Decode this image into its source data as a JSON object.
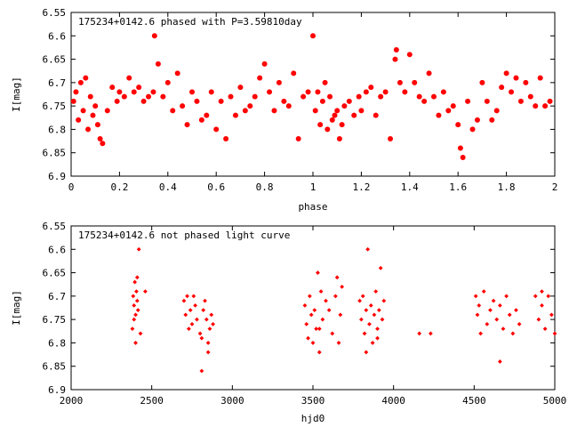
{
  "chart_data": [
    {
      "type": "scatter",
      "title": "175234+0142.6 phased with P=3.59810day",
      "xlabel": "phase",
      "ylabel": "I[mag]",
      "xlim": [
        0,
        2
      ],
      "ylim": [
        6.9,
        6.55
      ],
      "y_inverted": true,
      "xticks": [
        0,
        0.2,
        0.4,
        0.6,
        0.8,
        1,
        1.2,
        1.4,
        1.6,
        1.8,
        2
      ],
      "xtick_labels": [
        "0",
        "0.2",
        "0.4",
        "0.6",
        "0.8",
        "1",
        "1.2",
        "1.4",
        "1.6",
        "1.8",
        "2"
      ],
      "yticks": [
        6.55,
        6.6,
        6.65,
        6.7,
        6.75,
        6.8,
        6.85,
        6.9
      ],
      "ytick_labels": [
        "6.55",
        "6.6",
        "6.65",
        "6.7",
        "6.75",
        "6.8",
        "6.85",
        "6.9"
      ],
      "grid": false,
      "legend": "none",
      "marker_color": "#ff0000",
      "marker": "filled-circle",
      "series": [
        {
          "x": [
            0.01,
            0.02,
            0.03,
            0.04,
            0.05,
            0.06,
            0.07,
            0.08,
            0.09,
            0.1,
            0.11,
            0.12,
            0.13,
            0.15,
            0.17,
            0.19,
            0.2,
            0.22,
            0.24,
            0.26,
            0.28,
            0.3,
            0.32,
            0.34,
            0.345,
            0.36,
            0.38,
            0.4,
            0.42,
            0.44,
            0.46,
            0.48,
            0.5,
            0.52,
            0.54,
            0.56,
            0.58,
            0.6,
            0.62,
            0.64,
            0.66,
            0.68,
            0.7,
            0.72,
            0.74,
            0.76,
            0.78,
            0.8,
            0.82,
            0.84,
            0.86,
            0.88,
            0.9,
            0.92,
            0.94,
            0.96,
            0.98,
            1.0,
            1.01,
            1.02,
            1.03,
            1.04,
            1.05,
            1.06,
            1.07,
            1.08,
            1.09,
            1.1,
            1.11,
            1.12,
            1.13,
            1.15,
            1.17,
            1.19,
            1.2,
            1.22,
            1.24,
            1.26,
            1.28,
            1.3,
            1.32,
            1.34,
            1.345,
            1.36,
            1.38,
            1.4,
            1.42,
            1.44,
            1.46,
            1.48,
            1.5,
            1.52,
            1.54,
            1.56,
            1.58,
            1.6,
            1.61,
            1.62,
            1.64,
            1.66,
            1.68,
            1.7,
            1.72,
            1.74,
            1.76,
            1.78,
            1.8,
            1.82,
            1.84,
            1.86,
            1.88,
            1.9,
            1.92,
            1.94,
            1.96,
            1.98
          ],
          "y": [
            6.74,
            6.72,
            6.78,
            6.7,
            6.76,
            6.69,
            6.8,
            6.73,
            6.77,
            6.75,
            6.79,
            6.82,
            6.83,
            6.76,
            6.71,
            6.74,
            6.72,
            6.73,
            6.69,
            6.72,
            6.71,
            6.74,
            6.73,
            6.72,
            6.6,
            6.66,
            6.73,
            6.7,
            6.76,
            6.68,
            6.75,
            6.79,
            6.72,
            6.74,
            6.78,
            6.77,
            6.72,
            6.8,
            6.74,
            6.82,
            6.73,
            6.77,
            6.71,
            6.76,
            6.75,
            6.73,
            6.69,
            6.66,
            6.72,
            6.76,
            6.7,
            6.74,
            6.75,
            6.68,
            6.82,
            6.73,
            6.72,
            6.6,
            6.76,
            6.72,
            6.79,
            6.74,
            6.7,
            6.8,
            6.73,
            6.78,
            6.77,
            6.76,
            6.82,
            6.79,
            6.75,
            6.74,
            6.77,
            6.73,
            6.76,
            6.72,
            6.71,
            6.77,
            6.73,
            6.72,
            6.82,
            6.65,
            6.63,
            6.7,
            6.72,
            6.64,
            6.7,
            6.73,
            6.74,
            6.68,
            6.73,
            6.77,
            6.72,
            6.76,
            6.75,
            6.79,
            6.84,
            6.86,
            6.74,
            6.8,
            6.78,
            6.7,
            6.74,
            6.78,
            6.76,
            6.71,
            6.68,
            6.72,
            6.69,
            6.74,
            6.7,
            6.73,
            6.75,
            6.69,
            6.75,
            6.74
          ]
        }
      ]
    },
    {
      "type": "scatter",
      "title": "175234+0142.6 not phased light curve",
      "xlabel": "hjd0",
      "ylabel": "I[mag]",
      "xlim": [
        2000,
        5000
      ],
      "ylim": [
        6.9,
        6.55
      ],
      "y_inverted": true,
      "xticks": [
        2000,
        2500,
        3000,
        3500,
        4000,
        4500,
        5000
      ],
      "xtick_labels": [
        "2000",
        "2500",
        "3000",
        "3500",
        "4000",
        "4500",
        "5000"
      ],
      "yticks": [
        6.55,
        6.6,
        6.65,
        6.7,
        6.75,
        6.8,
        6.85,
        6.9
      ],
      "ytick_labels": [
        "6.55",
        "6.6",
        "6.65",
        "6.7",
        "6.75",
        "6.8",
        "6.85",
        "6.9"
      ],
      "grid": false,
      "legend": "none",
      "marker_color": "#ff0000",
      "marker": "diamond",
      "series": [
        {
          "x": [
            2380,
            2385,
            2390,
            2395,
            2400,
            2405,
            2410,
            2415,
            2420,
            2430,
            2460,
            2390,
            2400,
            2410,
            2700,
            2710,
            2720,
            2730,
            2740,
            2750,
            2760,
            2770,
            2780,
            2800,
            2810,
            2820,
            2830,
            2840,
            2850,
            2860,
            2870,
            2880,
            2810,
            2850,
            3450,
            3460,
            3470,
            3480,
            3490,
            3500,
            3510,
            3520,
            3530,
            3540,
            3550,
            3560,
            3580,
            3600,
            3620,
            3640,
            3660,
            3670,
            3680,
            3540,
            3650,
            3790,
            3800,
            3810,
            3820,
            3830,
            3840,
            3850,
            3860,
            3870,
            3880,
            3890,
            3900,
            3910,
            3920,
            3930,
            3940,
            3830,
            3900,
            4160,
            4230,
            4510,
            4520,
            4530,
            4540,
            4560,
            4580,
            4600,
            4620,
            4640,
            4660,
            4680,
            4700,
            4720,
            4740,
            4760,
            4780,
            4660,
            4880,
            4900,
            4920,
            4940,
            4960,
            4980,
            5000,
            4920
          ],
          "y": [
            6.77,
            6.7,
            6.72,
            6.67,
            6.74,
            6.69,
            6.71,
            6.73,
            6.6,
            6.78,
            6.69,
            6.75,
            6.8,
            6.66,
            6.71,
            6.74,
            6.7,
            6.77,
            6.73,
            6.76,
            6.7,
            6.72,
            6.75,
            6.78,
            6.79,
            6.73,
            6.71,
            6.75,
            6.8,
            6.77,
            6.74,
            6.76,
            6.86,
            6.82,
            6.72,
            6.76,
            6.79,
            6.7,
            6.74,
            6.8,
            6.73,
            6.77,
            6.65,
            6.82,
            6.69,
            6.75,
            6.71,
            6.73,
            6.78,
            6.7,
            6.8,
            6.74,
            6.68,
            6.77,
            6.66,
            6.71,
            6.75,
            6.7,
            6.78,
            6.73,
            6.6,
            6.76,
            6.72,
            6.8,
            6.74,
            6.69,
            6.77,
            6.73,
            6.64,
            6.75,
            6.71,
            6.82,
            6.79,
            6.78,
            6.78,
            6.7,
            6.74,
            6.72,
            6.78,
            6.69,
            6.76,
            6.73,
            6.71,
            6.75,
            6.72,
            6.77,
            6.7,
            6.74,
            6.78,
            6.73,
            6.76,
            6.84,
            6.7,
            6.75,
            6.72,
            6.77,
            6.7,
            6.74,
            6.78,
            6.69
          ]
        }
      ]
    }
  ]
}
